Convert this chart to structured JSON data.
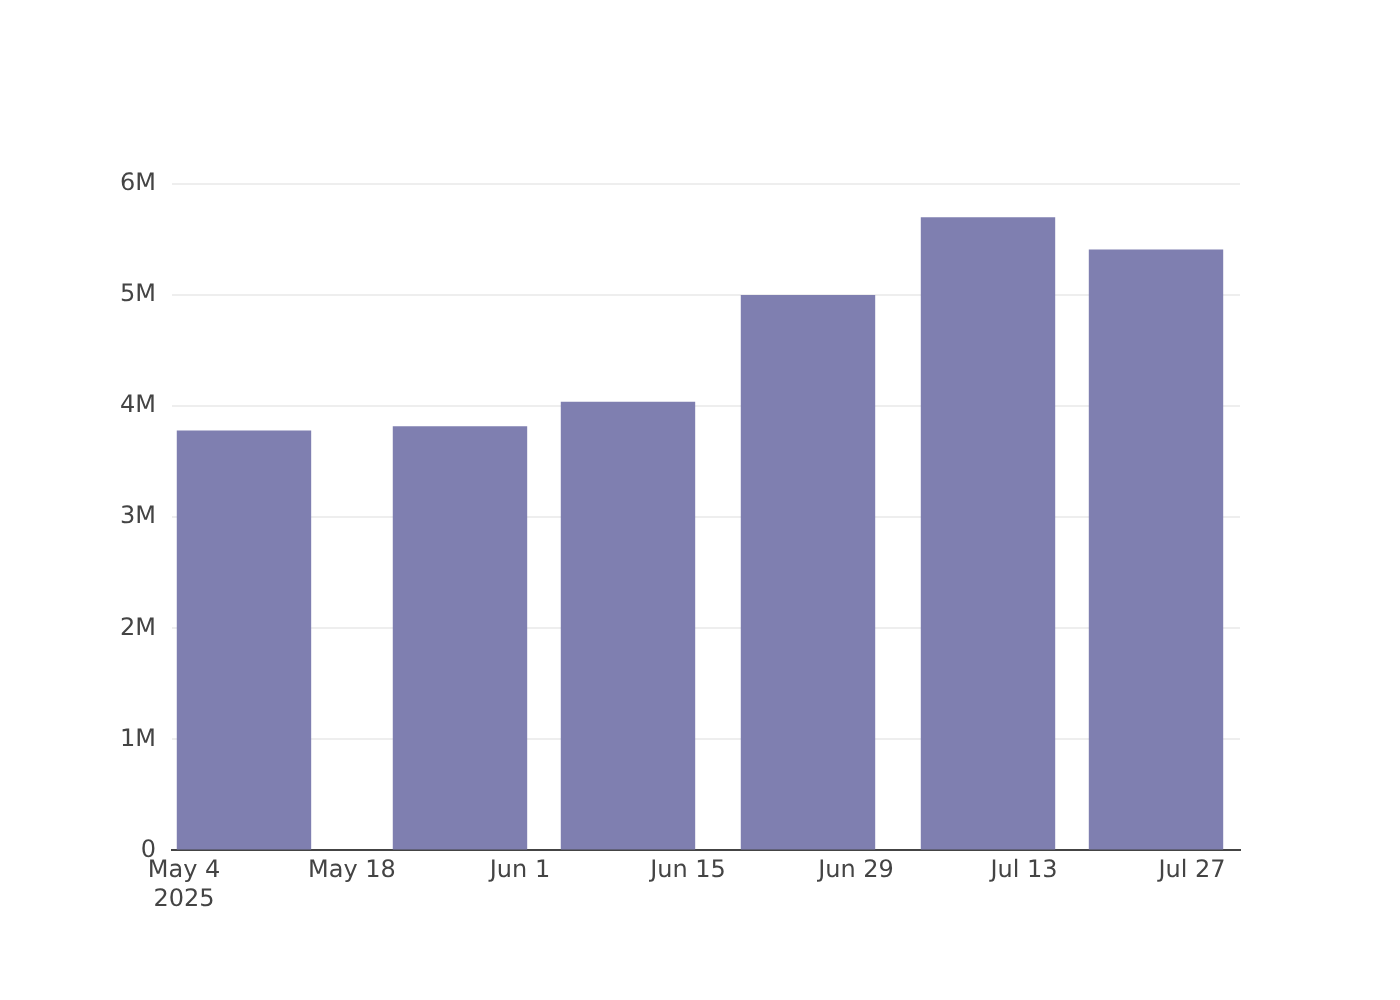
{
  "chart_data": {
    "type": "bar",
    "x": [
      "2025-05-09",
      "2025-05-27",
      "2025-06-10",
      "2025-06-25",
      "2025-07-10",
      "2025-07-24"
    ],
    "values": [
      3780000,
      3820000,
      4040000,
      5000000,
      5700000,
      5410000
    ],
    "color": "#7f7fb0",
    "xlim": [
      "2025-05-03",
      "2025-07-31"
    ],
    "xticks": [
      {
        "value": "2025-05-04",
        "label": "May 4\n2025"
      },
      {
        "value": "2025-05-18",
        "label": "May 18"
      },
      {
        "value": "2025-06-01",
        "label": "Jun 1"
      },
      {
        "value": "2025-06-15",
        "label": "Jun 15"
      },
      {
        "value": "2025-06-29",
        "label": "Jun 29"
      },
      {
        "value": "2025-07-13",
        "label": "Jul 13"
      },
      {
        "value": "2025-07-27",
        "label": "Jul 27"
      }
    ],
    "ylim": [
      0,
      6000000
    ],
    "yticks": [
      {
        "value": 0,
        "label": "0"
      },
      {
        "value": 1000000,
        "label": "1M"
      },
      {
        "value": 2000000,
        "label": "2M"
      },
      {
        "value": 3000000,
        "label": "3M"
      },
      {
        "value": 4000000,
        "label": "4M"
      },
      {
        "value": 5000000,
        "label": "5M"
      },
      {
        "value": 6000000,
        "label": "6M"
      }
    ],
    "grid": "y"
  }
}
